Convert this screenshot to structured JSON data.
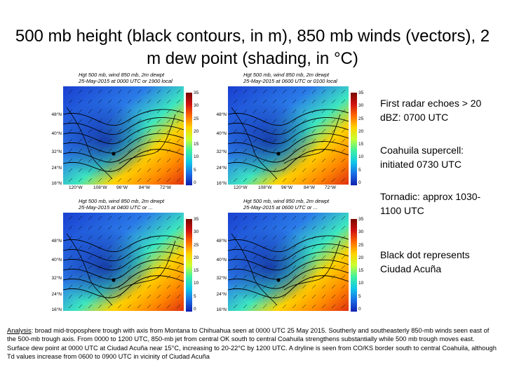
{
  "title": "500 mb height (black contours, in m), 850 mb winds (vectors), 2 m dew point (shading, in °C)",
  "panels": [
    {
      "line1": "Hgt 500 mb, wind 850 mb, 2m dewpt",
      "line2": "25-May-2015 at 0000 UTC or 1900 local"
    },
    {
      "line1": "Hgt 500 mb, wind 850 mb, 2m dewpt",
      "line2": "25-May-2015 at 0600 UTC or 0100 local"
    },
    {
      "line1": "Hgt 500 mb, wind 850 mb, 2m dewpt",
      "line2": "25-May-2015 at 0400 UTC or ..."
    },
    {
      "line1": "Hgt 500 mb, wind 850 mb, 2m dewpt",
      "line2": "25-May-2015 at 0600 UTC or ..."
    }
  ],
  "lat_labels": [
    "48°N",
    "40°N",
    "32°N",
    "24°N",
    "16°N"
  ],
  "lon_labels": [
    "120°W",
    "108°W",
    "96°W",
    "84°W",
    "72°W"
  ],
  "colorbar_ticks": [
    "35",
    "30",
    "25",
    "20",
    "15",
    "10",
    "5",
    "0"
  ],
  "notes": {
    "radar": "First radar echoes > 20 dBZ: 0700 UTC",
    "supercell": "Coahuila supercell: initiated 0730 UTC",
    "tornadic": "Tornadic: approx 1030-1100 UTC",
    "dot": "Black dot represents Ciudad Acuña"
  },
  "analysis": {
    "label": "Analysis",
    "text": ": broad mid-troposphere trough with axis from Montana to Chihuahua seen at 0000 UTC 25 May 2015. Southerly and southeasterly 850-mb winds seen east of the 500-mb trough axis. From 0000 to 1200 UTC, 850-mb jet from central OK south to central Coahuila strengthens substantially while 500 mb trough moves east. Surface dew point at 0000 UTC at Ciudad Acuña near 15°C, increasing to 20-22°C by 1200 UTC. A dryline is seen from CO/KS border south to central Coahuila, although Td values increase from 0600 to 0900 UTC in vicinity of Ciudad Acuña"
  }
}
